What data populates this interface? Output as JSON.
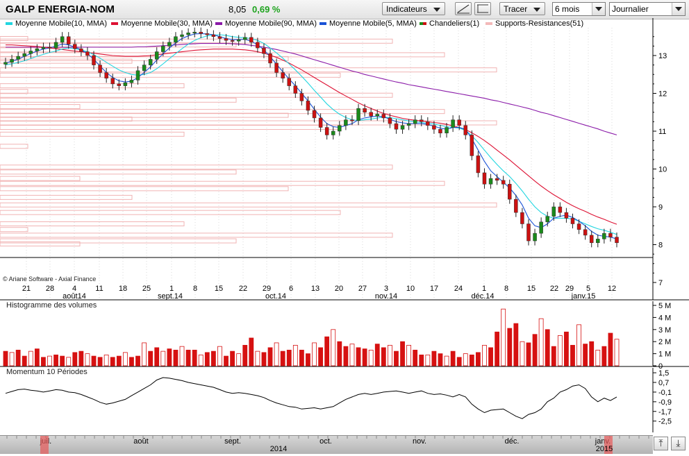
{
  "header": {
    "title": "GALP ENERGIA-NOM",
    "price": "8,05",
    "change": "0,69 %",
    "indicators_label": "Indicateurs",
    "tracer_label": "Tracer",
    "period_value": "6 mois",
    "interval_value": "Journalier",
    "change_color": "#1da31d"
  },
  "legend": [
    {
      "label": "Moyenne Mobile(10, MMA)",
      "color": "#22d6e0"
    },
    {
      "label": "Moyenne Mobile(30, MMA)",
      "color": "#dd1133"
    },
    {
      "label": "Moyenne Mobile(90, MMA)",
      "color": "#8a1aa8"
    },
    {
      "label": "Moyenne Mobile(5, MMA)",
      "color": "#1a52d6"
    },
    {
      "label": "Chandeliers(1)",
      "color": "#cc1111"
    },
    {
      "label": "Supports-Resistances(51)",
      "color": "#f3b9b9"
    }
  ],
  "copyright": "© Ariane Software - Axial Finance",
  "volume_panel_label": "Histogramme des volumes",
  "momentum_panel_label": "Momentum 10 Périodes",
  "date_axis": {
    "days": [
      "21",
      "28",
      "4",
      "11",
      "18",
      "25",
      "1",
      "8",
      "15",
      "22",
      "29",
      "6",
      "13",
      "20",
      "27",
      "3",
      "10",
      "17",
      "24",
      "1",
      "8",
      "15",
      "22",
      "29",
      "5",
      "12"
    ],
    "months": [
      "août14",
      "sept.14",
      "oct.14",
      "nov.14",
      "déc.14",
      "janv.15"
    ]
  },
  "nav_axis": {
    "months": [
      "juil.",
      "août",
      "sept.",
      "oct.",
      "nov.",
      "déc.",
      "janv."
    ],
    "year": "2014",
    "year_end": "2015"
  },
  "chart_data": [
    {
      "type": "candlestick",
      "title": "GALP ENERGIA-NOM",
      "ylim": [
        7,
        14
      ],
      "yticks": [
        "7",
        "8",
        "9",
        "10",
        "11",
        "12",
        "13"
      ],
      "up_color": "#1a8a1a",
      "down_color": "#cc1111",
      "closes": [
        12.82,
        12.9,
        12.98,
        13.05,
        13.12,
        13.18,
        13.22,
        13.2,
        13.35,
        13.5,
        13.3,
        13.18,
        13.1,
        13.0,
        12.75,
        12.55,
        12.4,
        12.25,
        12.2,
        12.28,
        12.35,
        12.6,
        12.75,
        12.9,
        13.1,
        13.25,
        13.35,
        13.5,
        13.55,
        13.6,
        13.62,
        13.58,
        13.55,
        13.5,
        13.45,
        13.4,
        13.38,
        13.42,
        13.48,
        13.35,
        13.2,
        13.05,
        12.8,
        12.55,
        12.4,
        12.2,
        12.0,
        11.8,
        11.55,
        11.35,
        11.1,
        10.9,
        11.0,
        11.15,
        11.3,
        11.28,
        11.6,
        11.5,
        11.4,
        11.45,
        11.35,
        11.2,
        11.05,
        11.15,
        11.2,
        11.3,
        11.25,
        11.15,
        11.05,
        10.95,
        11.1,
        11.3,
        11.15,
        10.9,
        10.35,
        9.9,
        9.6,
        9.75,
        9.7,
        9.6,
        9.2,
        8.85,
        8.55,
        8.1,
        8.3,
        8.6,
        8.75,
        9.0,
        8.85,
        8.7,
        8.55,
        8.4,
        8.25,
        8.05,
        8.15,
        8.3,
        8.2,
        8.05
      ],
      "ma5": [
        12.8,
        12.85,
        12.9,
        12.98,
        13.05,
        13.12,
        13.17,
        13.2,
        13.25,
        13.3,
        13.28,
        13.22,
        13.15,
        13.05,
        12.9,
        12.72,
        12.55,
        12.42,
        12.33,
        12.3,
        12.32,
        12.42,
        12.55,
        12.7,
        12.88,
        13.05,
        13.2,
        13.33,
        13.45,
        13.52,
        13.57,
        13.58,
        13.57,
        13.55,
        13.5,
        13.45,
        13.42,
        13.42,
        13.43,
        13.38,
        13.28,
        13.15,
        12.97,
        12.77,
        12.57,
        12.38,
        12.2,
        12.0,
        11.8,
        11.58,
        11.37,
        11.2,
        11.12,
        11.1,
        11.15,
        11.2,
        11.3,
        11.35,
        11.38,
        11.4,
        11.38,
        11.32,
        11.25,
        11.22,
        11.2,
        11.2,
        11.2,
        11.18,
        11.13,
        11.08,
        11.05,
        11.1,
        11.1,
        11.05,
        10.8,
        10.5,
        10.2,
        9.95,
        9.8,
        9.65,
        9.5,
        9.3,
        9.05,
        8.7,
        8.5,
        8.45,
        8.55,
        8.7,
        8.75,
        8.78,
        8.72,
        8.62,
        8.5,
        8.35,
        8.25,
        8.22,
        8.2,
        8.15
      ],
      "ma10": [
        12.75,
        12.78,
        12.82,
        12.86,
        12.92,
        12.98,
        13.03,
        13.08,
        13.12,
        13.17,
        13.2,
        13.18,
        13.15,
        13.1,
        13.02,
        12.93,
        12.82,
        12.72,
        12.62,
        12.55,
        12.5,
        12.48,
        12.5,
        12.55,
        12.65,
        12.78,
        12.92,
        13.05,
        13.18,
        13.3,
        13.4,
        13.47,
        13.52,
        13.54,
        13.55,
        13.53,
        13.5,
        13.48,
        13.47,
        13.45,
        13.4,
        13.32,
        13.2,
        13.07,
        12.93,
        12.78,
        12.62,
        12.45,
        12.27,
        12.08,
        11.9,
        11.72,
        11.57,
        11.45,
        11.36,
        11.3,
        11.28,
        11.3,
        11.32,
        11.35,
        11.37,
        11.36,
        11.33,
        11.3,
        11.27,
        11.25,
        11.23,
        11.21,
        11.19,
        11.15,
        11.12,
        11.1,
        11.08,
        11.02,
        10.88,
        10.7,
        10.5,
        10.3,
        10.12,
        9.95,
        9.8,
        9.62,
        9.42,
        9.2,
        9.0,
        8.85,
        8.75,
        8.7,
        8.7,
        8.7,
        8.68,
        8.62,
        8.55,
        8.48,
        8.42,
        8.38,
        8.33,
        8.27
      ],
      "ma30": [
        13.28,
        13.28,
        13.27,
        13.26,
        13.25,
        13.24,
        13.22,
        13.2,
        13.18,
        13.16,
        13.14,
        13.12,
        13.1,
        13.08,
        13.06,
        13.04,
        13.02,
        13.0,
        12.99,
        12.98,
        12.98,
        12.98,
        12.99,
        13.0,
        13.02,
        13.04,
        13.06,
        13.08,
        13.1,
        13.12,
        13.14,
        13.15,
        13.16,
        13.17,
        13.17,
        13.17,
        13.17,
        13.16,
        13.15,
        13.13,
        13.1,
        13.06,
        13.01,
        12.95,
        12.88,
        12.8,
        12.71,
        12.62,
        12.52,
        12.42,
        12.32,
        12.22,
        12.12,
        12.02,
        11.93,
        11.84,
        11.75,
        11.67,
        11.6,
        11.53,
        11.47,
        11.42,
        11.38,
        11.34,
        11.31,
        11.29,
        11.27,
        11.25,
        11.23,
        11.21,
        11.18,
        11.14,
        11.1,
        11.04,
        10.96,
        10.86,
        10.75,
        10.63,
        10.5,
        10.37,
        10.24,
        10.1,
        9.96,
        9.82,
        9.68,
        9.55,
        9.43,
        9.32,
        9.22,
        9.12,
        9.03,
        8.95,
        8.88,
        8.8,
        8.73,
        8.67,
        8.6,
        8.54
      ],
      "ma90": [
        13.22,
        13.22,
        13.22,
        13.22,
        13.22,
        13.22,
        13.22,
        13.22,
        13.22,
        13.22,
        13.22,
        13.22,
        13.22,
        13.22,
        13.22,
        13.22,
        13.22,
        13.22,
        13.22,
        13.22,
        13.22,
        13.23,
        13.23,
        13.24,
        13.25,
        13.26,
        13.27,
        13.28,
        13.29,
        13.3,
        13.31,
        13.32,
        13.32,
        13.32,
        13.32,
        13.32,
        13.31,
        13.3,
        13.29,
        13.27,
        13.25,
        13.22,
        13.19,
        13.16,
        13.12,
        13.08,
        13.04,
        12.99,
        12.94,
        12.89,
        12.84,
        12.79,
        12.74,
        12.69,
        12.64,
        12.59,
        12.55,
        12.5,
        12.46,
        12.42,
        12.38,
        12.34,
        12.3,
        12.27,
        12.23,
        12.2,
        12.17,
        12.14,
        12.11,
        12.08,
        12.05,
        12.02,
        11.99,
        11.96,
        11.93,
        11.9,
        11.87,
        11.83,
        11.8,
        11.76,
        11.72,
        11.68,
        11.64,
        11.6,
        11.55,
        11.5,
        11.46,
        11.41,
        11.36,
        11.31,
        11.26,
        11.21,
        11.16,
        11.11,
        11.06,
        11.0,
        10.95,
        10.9
      ],
      "supports_resistances": [
        13.45,
        13.38,
        13.28,
        13.15,
        13.02,
        12.92,
        12.85,
        12.62,
        12.48,
        12.2,
        12.05,
        11.95,
        11.82,
        11.65,
        11.52,
        11.42,
        11.32,
        11.22,
        11.1,
        10.92,
        10.6,
        10.05,
        9.92,
        9.75,
        9.62,
        9.48,
        9.25,
        9.05,
        8.85,
        8.55,
        8.4,
        8.25,
        8.1,
        8.02
      ]
    },
    {
      "type": "bar",
      "title": "Histogramme des volumes",
      "ylim": [
        0,
        5
      ],
      "yticks": [
        "0",
        "1 M",
        "2 M",
        "3 M",
        "4 M",
        "5 M"
      ],
      "unit": "M",
      "values": [
        1.2,
        1.1,
        1.3,
        0.8,
        1.2,
        1.4,
        0.7,
        0.8,
        0.9,
        0.8,
        0.7,
        1.1,
        1.2,
        1.0,
        0.8,
        0.7,
        0.9,
        0.7,
        0.8,
        1.1,
        0.7,
        0.8,
        1.9,
        1.2,
        1.5,
        1.2,
        1.4,
        1.3,
        1.6,
        1.3,
        1.3,
        0.9,
        1.1,
        1.2,
        1.6,
        0.8,
        1.2,
        1.0,
        1.7,
        2.3,
        1.2,
        1.1,
        1.5,
        1.9,
        1.2,
        1.3,
        1.7,
        1.3,
        1.0,
        1.9,
        1.5,
        2.4,
        3.0,
        2.0,
        1.6,
        1.8,
        1.5,
        1.4,
        1.3,
        1.8,
        1.5,
        1.7,
        1.2,
        2.0,
        1.7,
        1.3,
        0.9,
        0.9,
        1.2,
        1.0,
        0.8,
        1.2,
        0.7,
        1.0,
        0.9,
        1.1,
        1.7,
        1.5,
        2.8,
        4.7,
        3.1,
        3.5,
        2.0,
        1.9,
        2.6,
        3.9,
        3.0,
        1.6,
        2.5,
        2.8,
        1.7,
        3.4,
        1.8,
        2.0,
        1.3,
        1.6,
        2.7,
        2.2
      ]
    },
    {
      "type": "line",
      "title": "Momentum 10 Périodes",
      "ylim": [
        -2.5,
        1.5
      ],
      "yticks": [
        "1,5",
        "0,7",
        "-0,1",
        "-0,9",
        "-1,7",
        "-2,5"
      ],
      "values": [
        -0.2,
        -0.05,
        0.1,
        0.15,
        0.05,
        0.0,
        -0.1,
        0.0,
        0.1,
        0.05,
        -0.1,
        -0.15,
        -0.3,
        -0.5,
        -0.7,
        -0.95,
        -1.1,
        -1.0,
        -0.85,
        -0.7,
        -0.4,
        -0.1,
        0.2,
        0.5,
        0.9,
        1.1,
        1.05,
        0.95,
        0.85,
        0.7,
        0.6,
        0.5,
        0.4,
        0.3,
        0.1,
        -0.1,
        -0.2,
        -0.15,
        -0.2,
        -0.3,
        -0.4,
        -0.55,
        -0.8,
        -1.0,
        -1.15,
        -1.3,
        -1.35,
        -1.5,
        -1.45,
        -1.4,
        -1.5,
        -1.4,
        -1.3,
        -1.0,
        -0.7,
        -0.5,
        -0.3,
        -0.2,
        -0.3,
        -0.2,
        -0.1,
        -0.05,
        0.0,
        -0.1,
        -0.2,
        -0.1,
        0.0,
        -0.2,
        -0.3,
        -0.25,
        -0.35,
        -0.5,
        -0.3,
        -0.5,
        -1.1,
        -1.5,
        -1.8,
        -1.6,
        -1.55,
        -1.5,
        -1.8,
        -2.1,
        -2.3,
        -1.95,
        -1.8,
        -1.5,
        -0.9,
        -0.6,
        -0.1,
        0.1,
        0.4,
        0.5,
        0.2,
        -0.5,
        -0.9,
        -0.6,
        -0.8,
        -0.5
      ]
    }
  ]
}
